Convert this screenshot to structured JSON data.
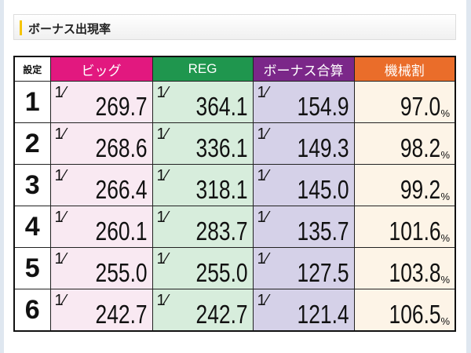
{
  "section_title": "ボーナス出現率",
  "colors": {
    "accent_bar": "#f5c400",
    "big": "#e2187f",
    "reg": "#1f964e",
    "total": "#7b2789",
    "payout": "#ea6d2a"
  },
  "table": {
    "headers": [
      "設定",
      "ビッグ",
      "REG",
      "ボーナス合算",
      "機械割"
    ],
    "fraction_prefix": "1/",
    "percent_unit": "%",
    "rows": [
      {
        "setting": "1",
        "big": "269.7",
        "reg": "364.1",
        "total": "154.9",
        "payout": "97.0"
      },
      {
        "setting": "2",
        "big": "268.6",
        "reg": "336.1",
        "total": "149.3",
        "payout": "98.2"
      },
      {
        "setting": "3",
        "big": "266.4",
        "reg": "318.1",
        "total": "145.0",
        "payout": "99.2"
      },
      {
        "setting": "4",
        "big": "260.1",
        "reg": "283.7",
        "total": "135.7",
        "payout": "101.6"
      },
      {
        "setting": "5",
        "big": "255.0",
        "reg": "255.0",
        "total": "127.5",
        "payout": "103.8"
      },
      {
        "setting": "6",
        "big": "242.7",
        "reg": "242.7",
        "total": "121.4",
        "payout": "106.5"
      }
    ]
  }
}
